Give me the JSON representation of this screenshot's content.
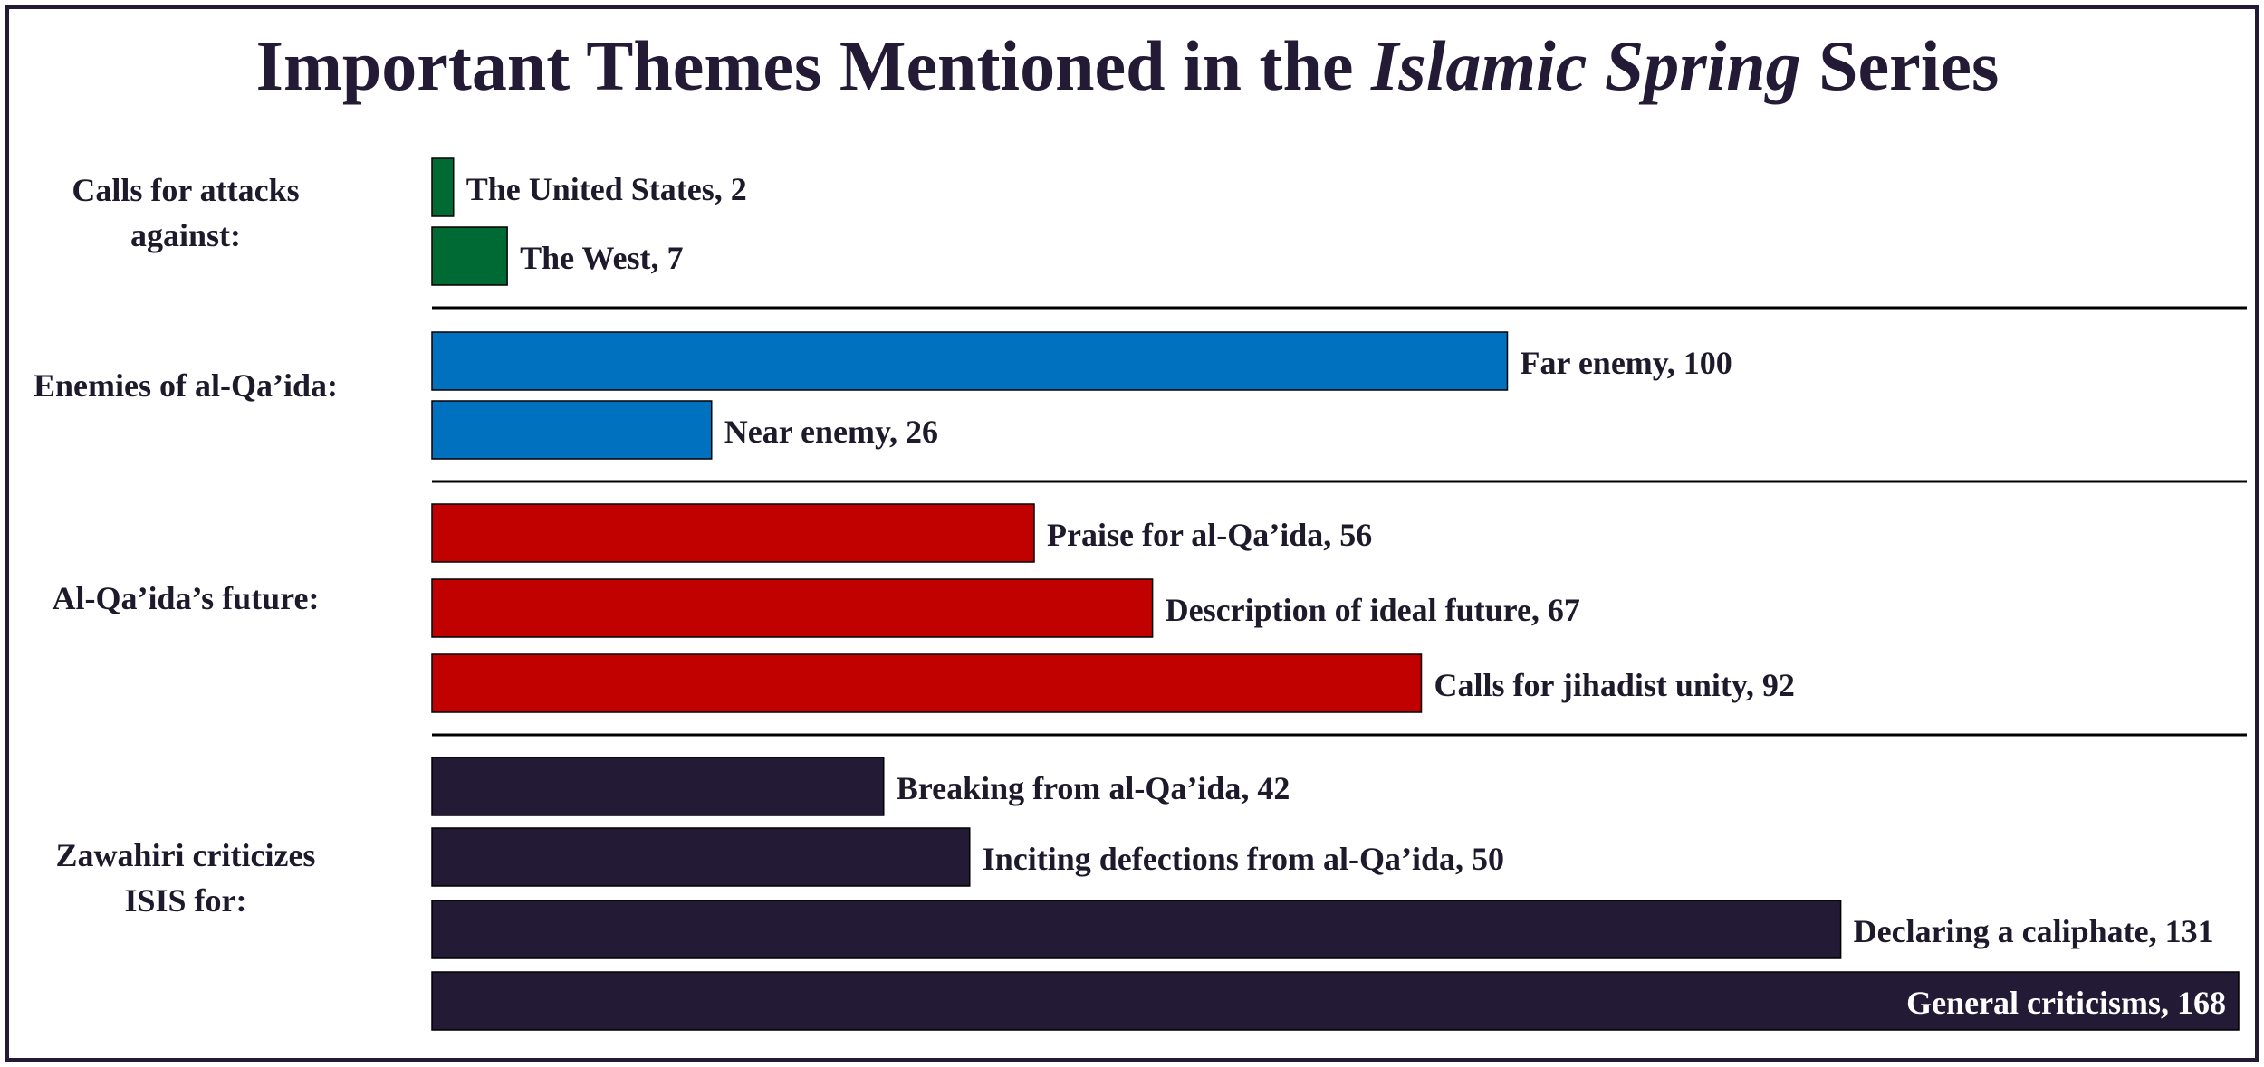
{
  "title": {
    "prefix": "Important Themes Mentioned in the ",
    "italic": "Islamic Spring",
    "suffix": " Series"
  },
  "colors": {
    "border": "#231a35",
    "title": "#231a35",
    "text": "#1e1a2c"
  },
  "chart_data": {
    "type": "bar",
    "orientation": "horizontal",
    "title": "Important Themes Mentioned in the Islamic Spring Series",
    "xlabel": "",
    "ylabel": "",
    "grid": false,
    "legend": "none",
    "groups": [
      {
        "label": "Calls for attacks against:",
        "label_lines": [
          "Calls for attacks",
          "against:"
        ],
        "color": "#006a35",
        "bars": [
          {
            "label": "The United States, 2",
            "value": 2
          },
          {
            "label": "The West, 7",
            "value": 7
          }
        ]
      },
      {
        "label": "Enemies of al-Qa’ida:",
        "label_lines": [
          "Enemies of al-Qa’ida:"
        ],
        "color": "#0071bf",
        "bars": [
          {
            "label": "Far enemy, 100",
            "value": 100
          },
          {
            "label": "Near enemy, 26",
            "value": 26
          }
        ]
      },
      {
        "label": "Al-Qa’ida’s future:",
        "label_lines": [
          "Al-Qa’ida’s future:"
        ],
        "color": "#c10000",
        "bars": [
          {
            "label": "Praise for al-Qa’ida, 56",
            "value": 56
          },
          {
            "label": "Description of ideal future, 67",
            "value": 67
          },
          {
            "label": "Calls for jihadist unity, 92",
            "value": 92
          }
        ]
      },
      {
        "label": "Zawahiri criticizes ISIS for:",
        "label_lines": [
          "Zawahiri criticizes",
          "ISIS for:"
        ],
        "color": "#231a35",
        "bars": [
          {
            "label": "Breaking from al-Qa’ida, 42",
            "value": 42
          },
          {
            "label": "Inciting defections from al-Qa’ida, 50",
            "value": 50
          },
          {
            "label": "Declaring a caliphate, 131",
            "value": 131
          },
          {
            "label": "General criticisms, 168",
            "value": 168
          }
        ]
      }
    ]
  }
}
